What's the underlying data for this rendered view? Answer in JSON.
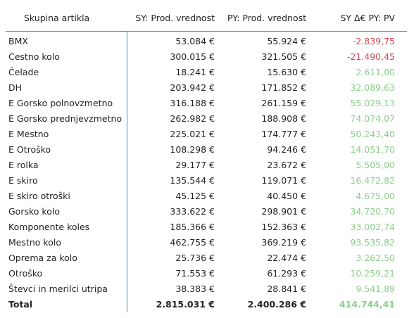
{
  "columns": {
    "group": "Skupina artikla",
    "sy": "SY: Prod. vrednost",
    "py": "PY: Prod. vrednost",
    "delta": "SY Δ€ PY: PV"
  },
  "rows": [
    {
      "name": "BMX",
      "sy": "53.084 €",
      "py": "55.924 €",
      "delta": "-2.839,75",
      "sign": "neg"
    },
    {
      "name": "Cestno kolo",
      "sy": "300.015 €",
      "py": "321.505 €",
      "delta": "-21.490,45",
      "sign": "neg"
    },
    {
      "name": "Čelade",
      "sy": "18.241 €",
      "py": "15.630 €",
      "delta": "2.611,00",
      "sign": "pos"
    },
    {
      "name": "DH",
      "sy": "203.942 €",
      "py": "171.852 €",
      "delta": "32.089,63",
      "sign": "pos"
    },
    {
      "name": "E Gorsko polnovzmetno",
      "sy": "316.188 €",
      "py": "261.159 €",
      "delta": "55.029,13",
      "sign": "pos"
    },
    {
      "name": "E Gorsko prednjevzmetno",
      "sy": "262.982 €",
      "py": "188.908 €",
      "delta": "74.074,07",
      "sign": "pos"
    },
    {
      "name": "E Mestno",
      "sy": "225.021 €",
      "py": "174.777 €",
      "delta": "50.243,40",
      "sign": "pos"
    },
    {
      "name": "E Otroško",
      "sy": "108.298 €",
      "py": "94.246 €",
      "delta": "14.051,70",
      "sign": "pos"
    },
    {
      "name": "E rolka",
      "sy": "29.177 €",
      "py": "23.672 €",
      "delta": "5.505,00",
      "sign": "pos"
    },
    {
      "name": "E skiro",
      "sy": "135.544 €",
      "py": "119.071 €",
      "delta": "16.472,82",
      "sign": "pos"
    },
    {
      "name": "E skiro otroški",
      "sy": "45.125 €",
      "py": "40.450 €",
      "delta": "4.675,00",
      "sign": "pos"
    },
    {
      "name": "Gorsko kolo",
      "sy": "333.622 €",
      "py": "298.901 €",
      "delta": "34.720,70",
      "sign": "pos"
    },
    {
      "name": "Komponente koles",
      "sy": "185.366 €",
      "py": "152.363 €",
      "delta": "33.002,74",
      "sign": "pos"
    },
    {
      "name": "Mestno kolo",
      "sy": "462.755 €",
      "py": "369.219 €",
      "delta": "93.535,82",
      "sign": "pos"
    },
    {
      "name": "Oprema za kolo",
      "sy": "25.736 €",
      "py": "22.474 €",
      "delta": "3.262,50",
      "sign": "pos"
    },
    {
      "name": "Otroško",
      "sy": "71.553 €",
      "py": "61.293 €",
      "delta": "10.259,21",
      "sign": "pos"
    },
    {
      "name": "Števci in merilci utripa",
      "sy": "38.383 €",
      "py": "28.841 €",
      "delta": "9.541,89",
      "sign": "pos"
    }
  ],
  "total": {
    "name": "Total",
    "sy": "2.815.031 €",
    "py": "2.400.286 €",
    "delta": "414.744,41"
  },
  "colors": {
    "negative": "#d64550",
    "positive": "#8ad08a",
    "accent_line": "#4a90c8"
  }
}
